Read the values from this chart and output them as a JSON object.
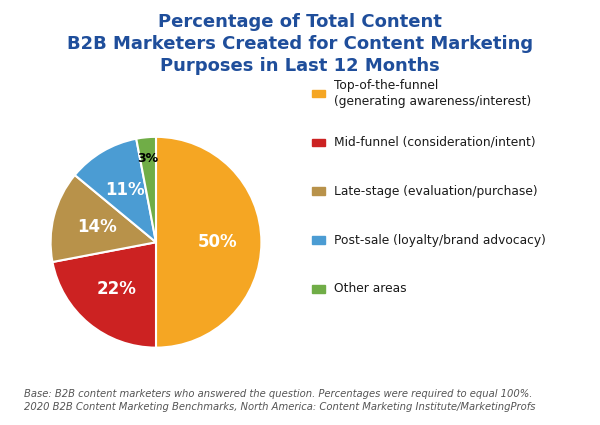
{
  "title": "Percentage of Total Content\nB2B Marketers Created for Content Marketing\nPurposes in Last 12 Months",
  "title_color": "#1F4E9B",
  "title_fontsize": 13.0,
  "slices": [
    50,
    22,
    14,
    11,
    3
  ],
  "labels_on_pie": [
    "50%",
    "22%",
    "14%",
    "11%",
    "3%"
  ],
  "colors": [
    "#F5A623",
    "#CC2222",
    "#B8924A",
    "#4B9CD3",
    "#70AD47"
  ],
  "legend_labels": [
    "Top-of-the-funnel\n(generating awareness/interest)",
    "Mid-funnel (consideration/intent)",
    "Late-stage (evaluation/purchase)",
    "Post-sale (loyalty/brand advocacy)",
    "Other areas"
  ],
  "footnote_line1": "Base: B2B content marketers who answered the question. Percentages were required to equal 100%.",
  "footnote_line2": "2020 B2B Content Marketing Benchmarks, North America: Content Marketing Institute/MarketingProfs",
  "footnote_fontsize": 7.2,
  "startangle": 90,
  "background_color": "#FFFFFF"
}
